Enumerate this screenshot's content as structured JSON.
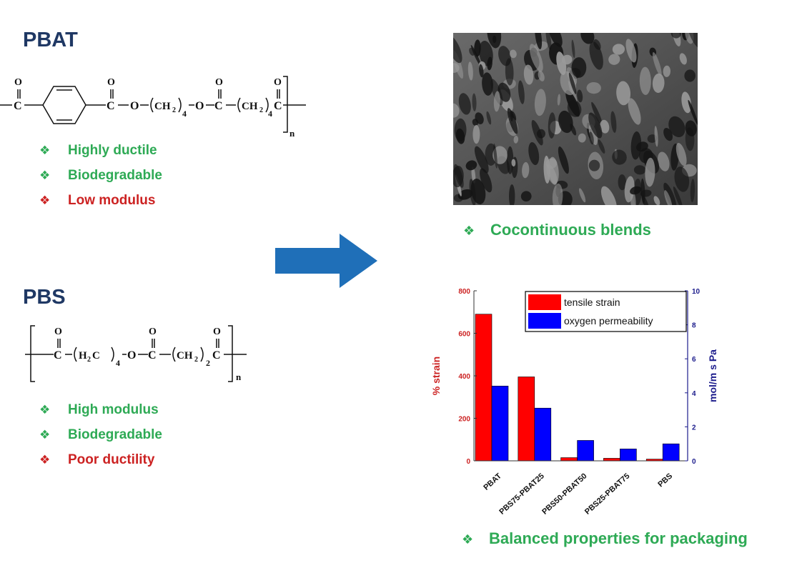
{
  "left": {
    "pbat": {
      "title": "PBAT",
      "formula": {
        "o": "O",
        "ch2": "CH",
        "two": "2",
        "four": "4",
        "n": "n"
      },
      "bullets": [
        {
          "mark": "❖",
          "text": "Highly ductile",
          "color": "#2eaa55"
        },
        {
          "mark": "❖",
          "text": "Biodegradable",
          "color": "#2eaa55"
        },
        {
          "mark": "❖",
          "text": "Low modulus",
          "color": "#cc2222"
        }
      ]
    },
    "pbs": {
      "title": "PBS",
      "formula": {
        "o": "O",
        "h2c": "H",
        "two": "2",
        "c": "C",
        "ch2": "CH",
        "four": "4",
        "n": "n"
      },
      "bullets": [
        {
          "mark": "❖",
          "text": "High modulus",
          "color": "#2eaa55"
        },
        {
          "mark": "❖",
          "text": "Biodegradable",
          "color": "#2eaa55"
        },
        {
          "mark": "❖",
          "text": "Poor ductility",
          "color": "#cc2222"
        }
      ]
    }
  },
  "arrow": {
    "color": "#1f6fb8"
  },
  "right": {
    "blend_caption": {
      "mark": "❖",
      "text": "Cocontinuous blends"
    },
    "packaging_caption": {
      "mark": "❖",
      "text": "Balanced properties for packaging"
    }
  },
  "chart_data": {
    "type": "bar",
    "categories": [
      "PBAT",
      "PBS75-PBAT25",
      "PBS50-PBAT50",
      "PBS25-PBAT75",
      "PBS"
    ],
    "series": [
      {
        "name": "tensile strain",
        "axis": "left",
        "color": "#ff0000",
        "values": [
          690,
          395,
          15,
          12,
          8
        ]
      },
      {
        "name": "oxygen permeability",
        "axis": "right",
        "color": "#0000ff",
        "values": [
          4.4,
          3.1,
          1.2,
          0.7,
          1.0
        ]
      }
    ],
    "ylabel": "% strain",
    "y2label": "mol/m s Pa",
    "ylim": [
      0,
      800
    ],
    "y2lim": [
      0,
      10
    ],
    "yticks": [
      0,
      200,
      400,
      600,
      800
    ],
    "y2ticks": [
      0,
      2,
      4,
      6,
      8,
      10
    ],
    "ylabel_color": "#cc2222",
    "y2label_color": "#1c1c8c",
    "legend_position": "top-right"
  }
}
